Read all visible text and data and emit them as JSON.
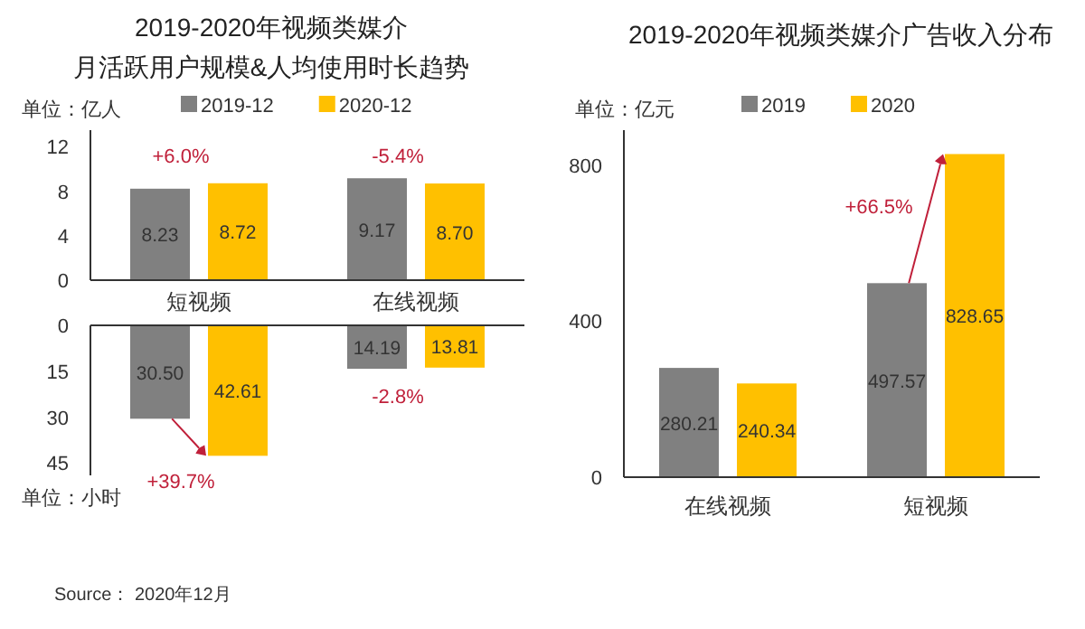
{
  "chart_data": [
    {
      "type": "bar",
      "title": "2019-2020年视频类媒介",
      "subtitle": "月活跃用户规模&人均使用时长趋势",
      "ylabel": "单位：亿人",
      "categories": [
        "短视频",
        "在线视频"
      ],
      "series": [
        {
          "name": "2019-12",
          "color": "#808080",
          "values": [
            8.23,
            9.17
          ],
          "value_labels": [
            "8.23",
            "9.17"
          ]
        },
        {
          "name": "2020-12",
          "color": "#ffc000",
          "values": [
            8.72,
            8.7
          ],
          "value_labels": [
            "8.72",
            "8.70"
          ]
        }
      ],
      "ylim": [
        0,
        13.5
      ],
      "yticks": [
        0,
        4,
        8,
        12
      ],
      "legend": "top",
      "grid": false,
      "annotations": [
        "+6.0%",
        "-5.4%"
      ]
    },
    {
      "type": "bar",
      "ylabel": "单位：小时",
      "categories": [
        null,
        null
      ],
      "series": [
        {
          "color": "#808080",
          "values": [
            30.5,
            14.19
          ],
          "value_labels": [
            "30.50",
            "14.19"
          ]
        },
        {
          "color": "#ffc000",
          "values": [
            42.61,
            13.81
          ],
          "value_labels": [
            "42.61",
            "13.81"
          ]
        }
      ],
      "ylim": [
        49,
        0
      ],
      "yticks": [
        0,
        15,
        30,
        45
      ],
      "tick_labels": "y",
      "grid": false,
      "annotations": [
        "-2.8%",
        "+39.7%"
      ]
    },
    {
      "type": "bar",
      "title": "2019-2020年视频类媒介广告收入分布",
      "ylabel": "单位：亿元",
      "categories": [
        "在线视频",
        "短视频"
      ],
      "series": [
        {
          "name": "2019",
          "color": "#808080",
          "values": [
            280.21,
            497.57
          ],
          "value_labels": [
            "280.21",
            "497.57"
          ]
        },
        {
          "name": "2020",
          "color": "#ffc000",
          "values": [
            240.34,
            828.65
          ],
          "value_labels": [
            "240.34",
            "828.65"
          ]
        }
      ],
      "ylim": [
        0,
        890
      ],
      "yticks": [
        0,
        400,
        800
      ],
      "legend": "top",
      "grid": false,
      "annotations": [
        "+66.5%",
        "Source： 2020年12月"
      ]
    }
  ]
}
